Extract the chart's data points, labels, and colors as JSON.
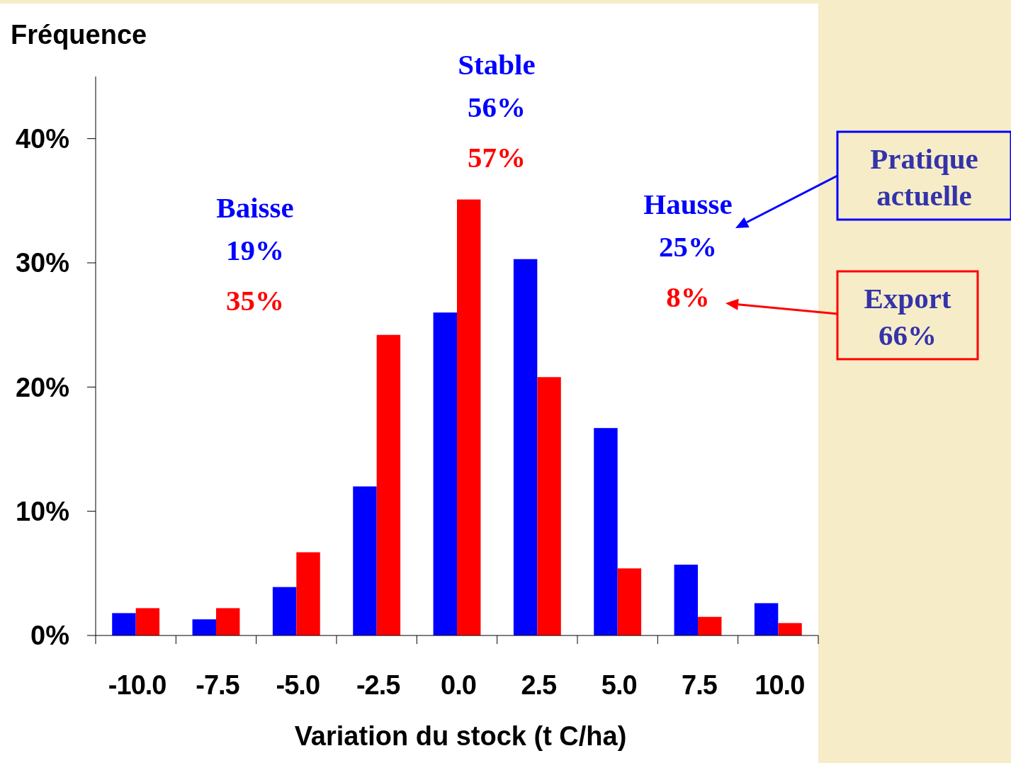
{
  "chart_data": {
    "type": "bar",
    "ylabel": "Fréquence",
    "xlabel": "Variation du stock (t C/ha)",
    "categories": [
      "-10.0",
      "-7.5",
      "-5.0",
      "-2.5",
      "0.0",
      "2.5",
      "5.0",
      "7.5",
      "10.0"
    ],
    "series": [
      {
        "name": "Pratique actuelle",
        "color": "#0000ff",
        "values": [
          1.8,
          1.3,
          3.9,
          12.0,
          26.0,
          30.3,
          16.7,
          5.7,
          2.6
        ]
      },
      {
        "name": "Export 66%",
        "color": "#ff0000",
        "values": [
          2.2,
          2.2,
          6.7,
          24.2,
          35.1,
          20.8,
          5.4,
          1.5,
          1.0
        ]
      }
    ],
    "ylim": [
      0,
      45
    ],
    "yticks": [
      {
        "value": 0,
        "label": "0%"
      },
      {
        "value": 10,
        "label": "10%"
      },
      {
        "value": 20,
        "label": "20%"
      },
      {
        "value": 30,
        "label": "30%"
      },
      {
        "value": 40,
        "label": "40%"
      }
    ],
    "annotations": [
      "Baisse",
      "19%",
      "35%",
      "Stable",
      "56%",
      "57%",
      "Hausse",
      "25%",
      "8%"
    ],
    "legend": "right",
    "grid": false
  }
}
